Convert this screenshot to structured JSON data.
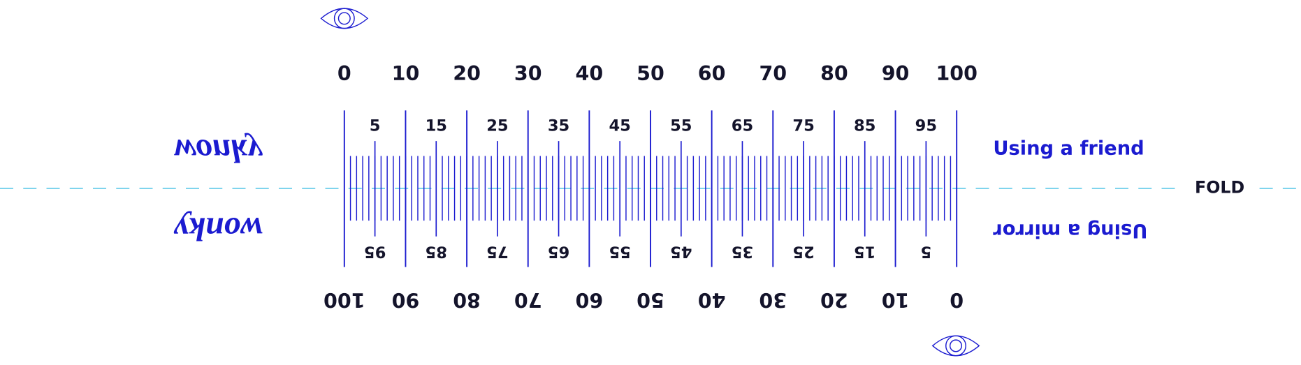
{
  "top_scale": {
    "major_labels": [
      0,
      10,
      20,
      30,
      40,
      50,
      60,
      70,
      80,
      90,
      100
    ],
    "minor_labels": [
      5,
      15,
      25,
      35,
      45,
      55,
      65,
      75,
      85,
      95
    ],
    "caption": "Using a friend",
    "word": "wonky"
  },
  "bottom_scale": {
    "major_labels": [
      0,
      10,
      20,
      30,
      40,
      50,
      60,
      70,
      80,
      90,
      100
    ],
    "minor_labels": [
      5,
      15,
      25,
      35,
      45,
      55,
      65,
      75,
      85,
      95
    ],
    "caption": "Using a mirror",
    "word": "wonky"
  },
  "fold_label": "FOLD"
}
